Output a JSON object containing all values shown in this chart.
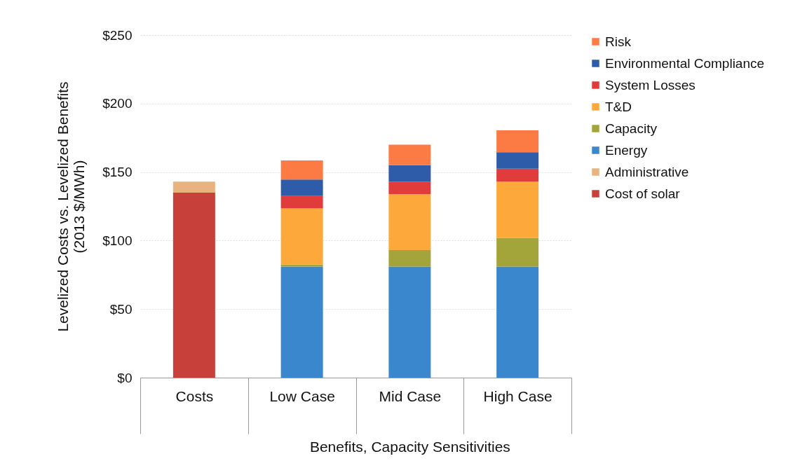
{
  "chart_data": {
    "type": "bar",
    "stacked": true,
    "categories": [
      "Costs",
      "Low Case",
      "Mid Case",
      "High Case"
    ],
    "xlabel": "Benefits, Capacity Sensitivities",
    "ylabel": "Levelized Costs vs. Levelized Benefits\n(2013 $/MWh)",
    "series": [
      {
        "name": "Cost of solar",
        "color": "#c8403a",
        "values": [
          135,
          null,
          null,
          null
        ]
      },
      {
        "name": "Administrative",
        "color": "#e8b37e",
        "values": [
          8,
          null,
          null,
          null
        ]
      },
      {
        "name": "Energy",
        "color": "#3a87cd",
        "values": [
          null,
          81,
          81,
          81
        ]
      },
      {
        "name": "Capacity",
        "color": "#a3a53a",
        "values": [
          null,
          1.5,
          12,
          21
        ]
      },
      {
        "name": "T&D",
        "color": "#fda83a",
        "values": [
          null,
          41,
          41,
          41
        ]
      },
      {
        "name": "System Losses",
        "color": "#e03c3c",
        "values": [
          null,
          9,
          9,
          9.5
        ]
      },
      {
        "name": "Environmental Compliance",
        "color": "#2e5ca8",
        "values": [
          null,
          12,
          12,
          12
        ]
      },
      {
        "name": "Risk",
        "color": "#fc7b45",
        "values": [
          null,
          14,
          15,
          16
        ]
      }
    ],
    "ylim": [
      0,
      250
    ],
    "yticks": [
      {
        "value": 0,
        "label": "$0"
      },
      {
        "value": 50,
        "label": "$50"
      },
      {
        "value": 100,
        "label": "$100"
      },
      {
        "value": 150,
        "label": "$150"
      },
      {
        "value": 200,
        "label": "$200"
      },
      {
        "value": 250,
        "label": "$250"
      }
    ],
    "grid": "y",
    "legend": "right"
  }
}
